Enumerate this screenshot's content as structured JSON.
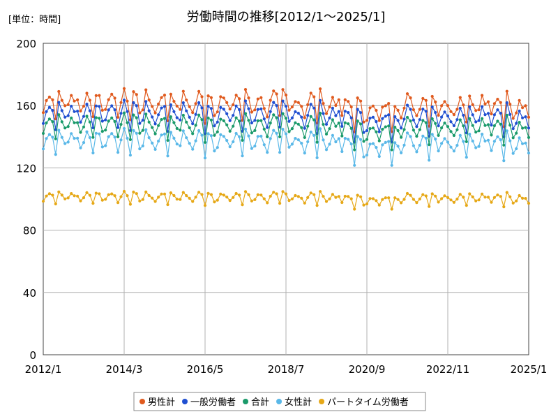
{
  "chart_data": {
    "type": "line",
    "title": "労働時間の推移[2012/1～2025/1]",
    "unit_label": "[単位：時間]",
    "xlabel": "",
    "ylabel": "",
    "x_tick_labels": [
      "2012/1",
      "2014/3",
      "2016/5",
      "2018/7",
      "2020/9",
      "2022/11",
      "2025/1"
    ],
    "x_count": 157,
    "ylim": [
      0,
      200
    ],
    "y_ticks": [
      0,
      40,
      80,
      120,
      160,
      200
    ],
    "grid": true,
    "legend_position": "bottom",
    "series": [
      {
        "name": "男性計",
        "color": "#e05a1e",
        "base": 161,
        "amp": 9,
        "extra": 7
      },
      {
        "name": "一般労働者",
        "color": "#1f4fd1",
        "base": 154,
        "amp": 9,
        "extra": 6
      },
      {
        "name": "合計",
        "color": "#1a9a6a",
        "base": 147,
        "amp": 8,
        "extra": 5
      },
      {
        "name": "女性計",
        "color": "#5ab8e8",
        "base": 137,
        "amp": 8,
        "extra": 5
      },
      {
        "name": "パートタイム労働者",
        "color": "#e6a817",
        "base": 101,
        "amp": 4,
        "extra": 2
      }
    ]
  }
}
